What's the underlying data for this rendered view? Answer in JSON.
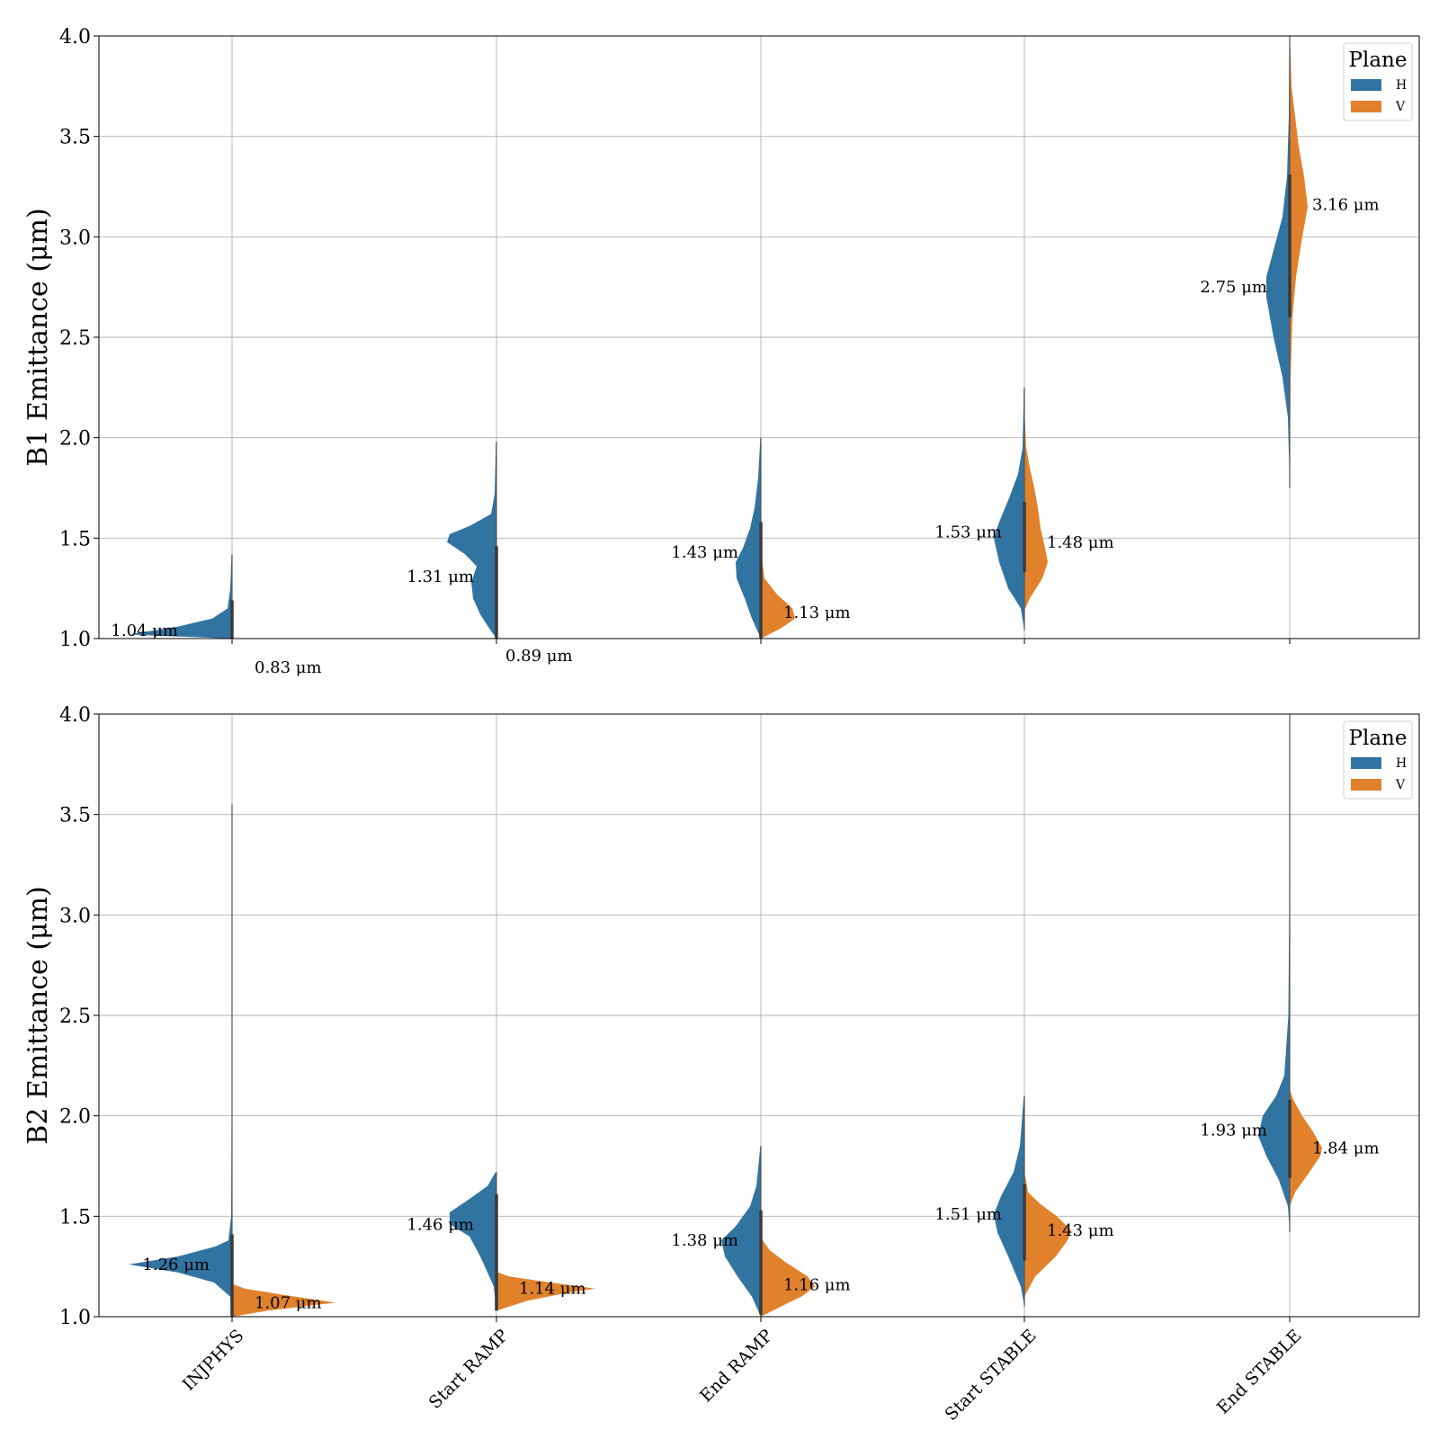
{
  "chart_data": [
    {
      "type": "violin",
      "ylabel": "B1 Emittance (μm)",
      "ylim": [
        1.0,
        4.0
      ],
      "yticks": [
        "1.0",
        "1.5",
        "2.0",
        "2.5",
        "3.0",
        "3.5",
        "4.0"
      ],
      "categories": [
        "INJPHYS",
        "Start RAMP",
        "End RAMP",
        "Start STABLE",
        "End STABLE"
      ],
      "show_category_labels": false,
      "grid": true,
      "split": true,
      "legend": {
        "title": "Plane",
        "position": "top-right",
        "entries": [
          "H",
          "V"
        ]
      },
      "series": [
        {
          "name": "H",
          "color": "#3274a1",
          "medians": [
            1.04,
            1.31,
            1.43,
            1.53,
            2.75
          ],
          "median_labels": [
            "1.04 μm",
            "1.31 μm",
            "1.43 μm",
            "1.53 μm",
            "2.75 μm"
          ],
          "ranges": [
            [
              1.0,
              1.42
            ],
            [
              1.0,
              1.98
            ],
            [
              1.0,
              2.0
            ],
            [
              1.04,
              2.25
            ],
            [
              1.75,
              4.0
            ]
          ]
        },
        {
          "name": "V",
          "color": "#e1812c",
          "medians": [
            0.83,
            0.89,
            1.13,
            1.48,
            3.16
          ],
          "median_labels": [
            "0.83 μm",
            "0.89 μm",
            "1.13 μm",
            "1.48 μm",
            "3.16 μm"
          ],
          "ranges": [
            [
              null,
              null
            ],
            [
              null,
              null
            ],
            [
              1.0,
              1.3
            ],
            [
              1.14,
              2.1
            ],
            [
              1.8,
              4.0
            ]
          ]
        }
      ]
    },
    {
      "type": "violin",
      "ylabel": "B2 Emittance (μm)",
      "ylim": [
        1.0,
        4.0
      ],
      "yticks": [
        "1.0",
        "1.5",
        "2.0",
        "2.5",
        "3.0",
        "3.5",
        "4.0"
      ],
      "categories": [
        "INJPHYS",
        "Start RAMP",
        "End RAMP",
        "Start STABLE",
        "End STABLE"
      ],
      "show_category_labels": true,
      "grid": true,
      "split": true,
      "legend": {
        "title": "Plane",
        "position": "top-right",
        "entries": [
          "H",
          "V"
        ]
      },
      "series": [
        {
          "name": "H",
          "color": "#3274a1",
          "medians": [
            1.26,
            1.46,
            1.38,
            1.51,
            1.93
          ],
          "median_labels": [
            "1.26 μm",
            "1.46 μm",
            "1.38 μm",
            "1.51 μm",
            "1.93 μm"
          ],
          "ranges": [
            [
              1.0,
              3.55
            ],
            [
              1.03,
              1.72
            ],
            [
              1.0,
              1.85
            ],
            [
              1.05,
              2.1
            ],
            [
              1.42,
              4.0
            ]
          ]
        },
        {
          "name": "V",
          "color": "#e1812c",
          "medians": [
            1.07,
            1.14,
            1.16,
            1.43,
            1.84
          ],
          "median_labels": [
            "1.07 μm",
            "1.14 μm",
            "1.16 μm",
            "1.43 μm",
            "1.84 μm"
          ],
          "ranges": [
            [
              1.0,
              1.16
            ],
            [
              1.03,
              1.22
            ],
            [
              1.0,
              1.38
            ],
            [
              1.1,
              1.62
            ],
            [
              1.55,
              2.12
            ]
          ]
        }
      ]
    }
  ]
}
